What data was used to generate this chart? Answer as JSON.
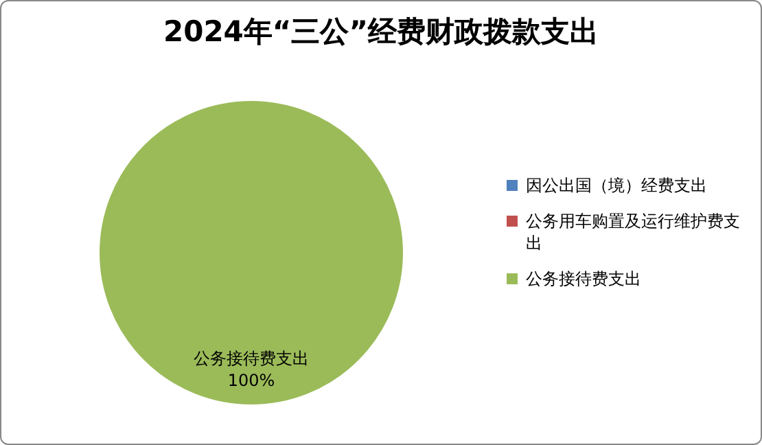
{
  "chart_data": {
    "type": "pie",
    "title": "2024年“三公”经费财政拨款支出",
    "categories": [
      "因公出国（境）经费支出",
      "公务用车购置及运行维护费支出",
      "公务接待费支出"
    ],
    "values": [
      0,
      0,
      100
    ],
    "colors": [
      "#4f81bd",
      "#c0504d",
      "#9bbb59"
    ],
    "value_labels": [
      null,
      null,
      "100%"
    ],
    "legend": "right"
  }
}
